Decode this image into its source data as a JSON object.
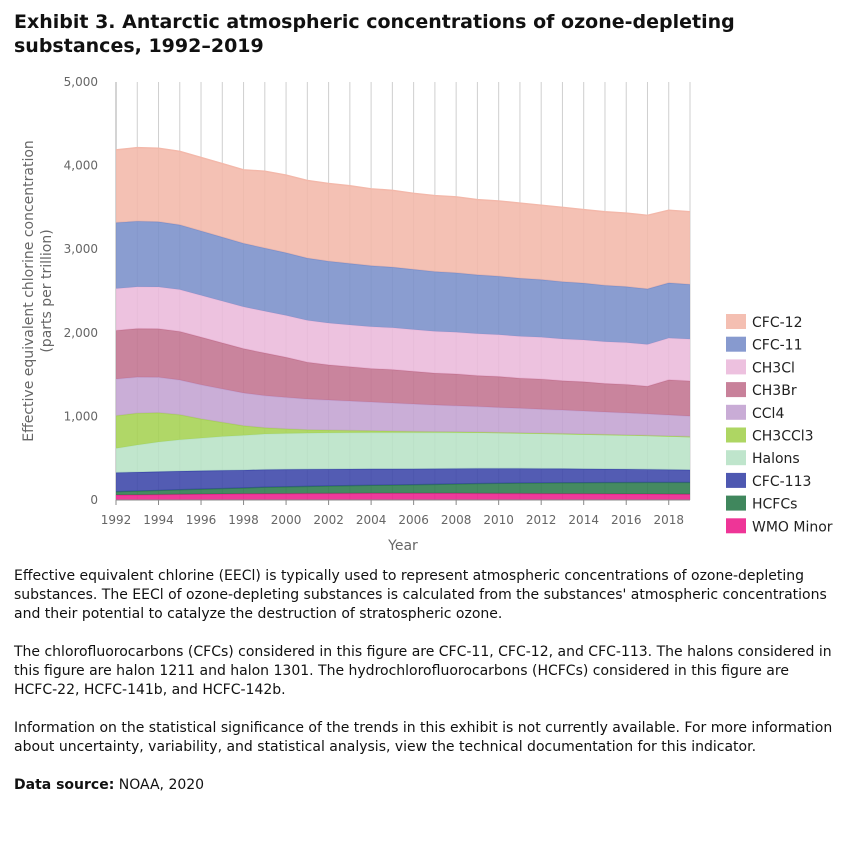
{
  "title": "Exhibit 3. Antarctic atmospheric concentrations of ozone-depleting substances, 1992–2019",
  "paragraphs": [
    "Effective equivalent chlorine (EECl) is typically used to represent atmospheric concentrations of ozone-depleting substances. The EECl of ozone-depleting substances is calculated from the substances' atmospheric concentrations and their potential to catalyze the destruction of stratospheric ozone.",
    "The chlorofluorocarbons (CFCs) considered in this figure are CFC-11, CFC-12, and CFC-113. The halons considered in this figure are halon 1211 and halon 1301. The hydrochlorofluorocarbons (HCFCs) considered in this figure are HCFC-22, HCFC-141b, and HCFC-142b.",
    "Information on the statistical significance of the trends in this exhibit is not currently available. For more information about uncertainty, variability, and statistical analysis, view the technical documentation for this indicator."
  ],
  "source": {
    "label": "Data source:",
    "text": "NOAA, 2020"
  },
  "chart_data": {
    "type": "area",
    "stacked": true,
    "x": [
      1992,
      1993,
      1994,
      1995,
      1996,
      1997,
      1998,
      1999,
      2000,
      2001,
      2002,
      2003,
      2004,
      2005,
      2006,
      2007,
      2008,
      2009,
      2010,
      2011,
      2012,
      2013,
      2014,
      2015,
      2016,
      2017,
      2018,
      2019
    ],
    "xticks": [
      "1992",
      "1994",
      "1996",
      "1998",
      "2000",
      "2002",
      "2004",
      "2006",
      "2008",
      "2010",
      "2012",
      "2014",
      "2016",
      "2018"
    ],
    "yticks": [
      "0",
      "1,000",
      "2,000",
      "3,000",
      "4,000",
      "5,000"
    ],
    "xlabel": "Year",
    "ylabel": "Effective equivalent chlorine concentration",
    "ylabel_sub": "(parts per trillion)",
    "ylim": [
      0,
      5000
    ],
    "xlim": [
      1992,
      2019
    ],
    "grid": "vertical",
    "legend_position": "right",
    "series": [
      {
        "name": "WMO Minor",
        "color": "#ec1f8c",
        "values": [
          60,
          62,
          65,
          68,
          70,
          72,
          74,
          75,
          76,
          77,
          78,
          79,
          80,
          80,
          80,
          80,
          80,
          79,
          78,
          77,
          76,
          75,
          74,
          73,
          72,
          71,
          70,
          69
        ]
      },
      {
        "name": "HCFCs",
        "color": "#2b7a4b",
        "values": [
          40,
          45,
          50,
          55,
          60,
          65,
          70,
          78,
          82,
          86,
          90,
          93,
          96,
          99,
          103,
          107,
          112,
          117,
          121,
          125,
          128,
          131,
          133,
          135,
          137,
          139,
          140,
          141
        ]
      },
      {
        "name": "CFC-113",
        "color": "#3b46a8",
        "values": [
          228,
          226,
          224,
          222,
          220,
          217,
          214,
          211,
          208,
          205,
          202,
          199,
          196,
          193,
          190,
          187,
          184,
          181,
          178,
          175,
          172,
          169,
          166,
          163,
          160,
          157,
          154,
          151
        ]
      },
      {
        "name": "Halons",
        "color": "#b8e2c6",
        "values": [
          290,
          325,
          355,
          375,
          390,
          405,
          415,
          425,
          430,
          432,
          433,
          434,
          434,
          434,
          433,
          432,
          430,
          428,
          425,
          422,
          419,
          416,
          413,
          410,
          407,
          404,
          400,
          396
        ]
      },
      {
        "name": "CH3CCl3",
        "color": "#a5d152",
        "values": [
          390,
          380,
          350,
          300,
          230,
          170,
          115,
          75,
          55,
          40,
          33,
          27,
          22,
          18,
          14,
          11,
          9,
          7,
          5,
          4,
          3,
          3,
          2,
          2,
          2,
          1,
          1,
          1
        ]
      },
      {
        "name": "CCl4",
        "color": "#c3a3d2",
        "values": [
          440,
          432,
          424,
          416,
          408,
          400,
          392,
          384,
          376,
          368,
          360,
          352,
          344,
          336,
          328,
          320,
          312,
          306,
          300,
          294,
          288,
          282,
          276,
          270,
          264,
          258,
          252,
          246
        ]
      },
      {
        "name": "CH3Br",
        "color": "#c2738f",
        "values": [
          580,
          580,
          580,
          580,
          570,
          550,
          530,
          510,
          480,
          440,
          420,
          410,
          400,
          400,
          390,
          380,
          380,
          370,
          370,
          360,
          360,
          350,
          350,
          340,
          340,
          330,
          420,
          420
        ]
      },
      {
        "name": "CH3Cl",
        "color": "#ebbadb",
        "values": [
          500,
          500,
          500,
          500,
          500,
          500,
          500,
          500,
          500,
          500,
          500,
          500,
          500,
          500,
          500,
          500,
          500,
          500,
          500,
          500,
          500,
          500,
          500,
          500,
          500,
          500,
          500,
          500
        ]
      },
      {
        "name": "CFC-11",
        "color": "#7a8fca",
        "values": [
          790,
          785,
          780,
          775,
          770,
          765,
          760,
          755,
          750,
          745,
          740,
          735,
          730,
          725,
          720,
          715,
          710,
          705,
          700,
          695,
          690,
          685,
          680,
          675,
          670,
          665,
          660,
          655
        ]
      },
      {
        "name": "CFC-12",
        "color": "#f3b8aa",
        "values": [
          870,
          880,
          880,
          880,
          880,
          880,
          880,
          920,
          930,
          930,
          930,
          930,
          920,
          920,
          910,
          910,
          910,
          900,
          900,
          900,
          890,
          890,
          880,
          880,
          880,
          880,
          870,
          870
        ]
      }
    ]
  }
}
